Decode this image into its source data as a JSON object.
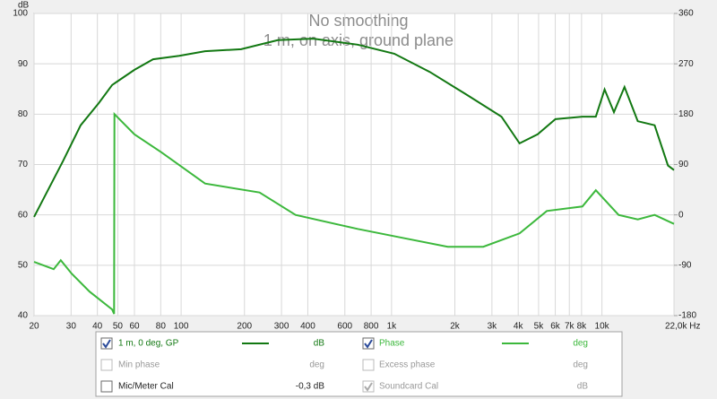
{
  "chart_data": {
    "type": "line",
    "title": "No smoothing",
    "subtitle": "1 m, on axis, ground plane",
    "y_axis_label": "dB",
    "xscale": "log",
    "grid": true,
    "xlim": [
      20,
      22000
    ],
    "xticks": [
      20,
      30,
      40,
      50,
      60,
      80,
      100,
      200,
      300,
      400,
      600,
      800,
      {
        "value": 1000,
        "label": "1k"
      },
      {
        "value": 2000,
        "label": "2k"
      },
      {
        "value": 3000,
        "label": "3k"
      },
      {
        "value": 4000,
        "label": "4k"
      },
      {
        "value": 5000,
        "label": "5k"
      },
      {
        "value": 6000,
        "label": "6k"
      },
      {
        "value": 7000,
        "label": "7k"
      },
      {
        "value": 8000,
        "label": "8k"
      },
      {
        "value": 10000,
        "label": "10k"
      },
      {
        "value": 22000,
        "label": "22,0k Hz"
      }
    ],
    "ylim": [
      40,
      100
    ],
    "yticks": [
      40,
      50,
      60,
      70,
      80,
      90,
      100
    ],
    "y2lim": [
      -180,
      360
    ],
    "y2ticks": [
      -180,
      -90,
      0,
      90,
      180,
      270,
      360
    ],
    "series": [
      {
        "name": "1 m, 0 deg, GP",
        "unit": "dB",
        "color": "#127812",
        "checked": true,
        "x": [
          20,
          27.4,
          33.3,
          40.6,
          47,
          60,
          73.6,
          98,
          130,
          193,
          288,
          424,
          690,
          1030,
          1520,
          2250,
          3330,
          4060,
          4950,
          6010,
          8070,
          9350,
          10300,
          11400,
          12800,
          14800,
          17800,
          20600,
          22000
        ],
        "values": [
          59.6,
          70.6,
          77.8,
          82.2,
          85.8,
          88.8,
          90.9,
          91.6,
          92.5,
          92.9,
          94.7,
          95.0,
          93.8,
          92.0,
          88.4,
          84.0,
          79.5,
          74.2,
          76.0,
          79.0,
          79.5,
          79.5,
          84.9,
          80.4,
          85.4,
          78.6,
          77.8,
          69.8,
          68.9
        ]
      },
      {
        "name": "Phase",
        "unit": "deg",
        "color": "#3cb83c",
        "axis": "y2",
        "checked": true,
        "x": [
          20,
          24.8,
          26.8,
          30.2,
          36.7,
          47,
          48,
          48.2,
          60,
          80.5,
          130,
          236,
          350,
          690,
          1130,
          1850,
          2730,
          4060,
          5470,
          8070,
          9350,
          12000,
          14800,
          17800,
          22000
        ],
        "values": [
          -84,
          -97,
          -81,
          -105,
          -137,
          -169,
          -177,
          180,
          144,
          112,
          56,
          40,
          0,
          -25,
          -41,
          -57,
          -57,
          -33,
          7,
          15,
          44,
          0,
          -8,
          0,
          -16
        ]
      }
    ]
  },
  "legend_panel": {
    "extra": [
      {
        "label": "Min phase",
        "unit": "deg",
        "checked": false,
        "enabled": false
      },
      {
        "label": "Excess phase",
        "unit": "deg",
        "checked": false,
        "enabled": false
      },
      {
        "label": "Mic/Meter Cal",
        "unit": "-0,3 dB",
        "checked": false,
        "enabled": true
      },
      {
        "label": "Soundcard Cal",
        "unit": "dB",
        "checked": true,
        "enabled": false
      }
    ]
  }
}
